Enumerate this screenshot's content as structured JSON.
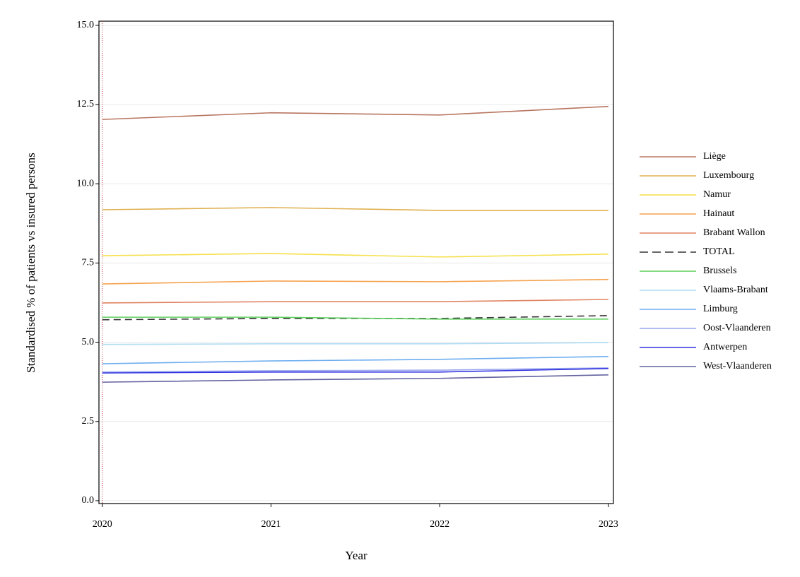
{
  "chart_data": {
    "type": "line",
    "x_label": "Year",
    "y_label": "Standardised % of patients vs insured persons",
    "x": [
      2020,
      2021,
      2022,
      2023
    ],
    "xlim": [
      2019.98,
      2023.03
    ],
    "xticks": [
      2020,
      2021,
      2022,
      2023
    ],
    "ylim": [
      -0.09,
      15.13
    ],
    "yticks": [
      {
        "value": 0,
        "label": "0.0"
      },
      2.5,
      {
        "value": 5,
        "label": "5.0"
      },
      7.5,
      {
        "value": 10,
        "label": "10.0"
      },
      12.5,
      {
        "value": 15,
        "label": "15.0"
      }
    ],
    "grid": true,
    "legend": "right",
    "series": [
      {
        "name": "Liège",
        "color": "#b87560",
        "values": [
          12.03,
          12.24,
          12.17,
          12.44
        ]
      },
      {
        "name": "Luxembourg",
        "color": "#e0b050",
        "values": [
          9.18,
          9.25,
          9.16,
          9.16
        ]
      },
      {
        "name": "Namur",
        "color": "#f5e04a",
        "values": [
          7.73,
          7.8,
          7.69,
          7.78
        ]
      },
      {
        "name": "Hainaut",
        "color": "#f5a24e",
        "values": [
          6.84,
          6.93,
          6.91,
          6.98
        ]
      },
      {
        "name": "Brabant Wallon",
        "color": "#e08462",
        "values": [
          6.24,
          6.28,
          6.28,
          6.35
        ]
      },
      {
        "name": "TOTAL",
        "color": "#333333",
        "line_style": "dashed",
        "values": [
          5.71,
          5.75,
          5.75,
          5.84
        ]
      },
      {
        "name": "Brussels",
        "color": "#5ccf5c",
        "values": [
          5.79,
          5.79,
          5.73,
          5.73
        ]
      },
      {
        "name": "Vlaams-Brabant",
        "color": "#b0dcf5",
        "values": [
          4.93,
          4.95,
          4.95,
          4.99
        ]
      },
      {
        "name": "Limburg",
        "color": "#6eaef0",
        "values": [
          4.32,
          4.41,
          4.46,
          4.55
        ]
      },
      {
        "name": "Oost-Vlaanderen",
        "color": "#98a6ee",
        "values": [
          4.06,
          4.1,
          4.12,
          4.19
        ]
      },
      {
        "name": "Antwerpen",
        "color": "#3232e0",
        "values": [
          4.03,
          4.06,
          4.06,
          4.17
        ]
      },
      {
        "name": "West-Vlaanderen",
        "color": "#6262a0",
        "values": [
          3.74,
          3.81,
          3.86,
          3.97
        ]
      }
    ]
  }
}
